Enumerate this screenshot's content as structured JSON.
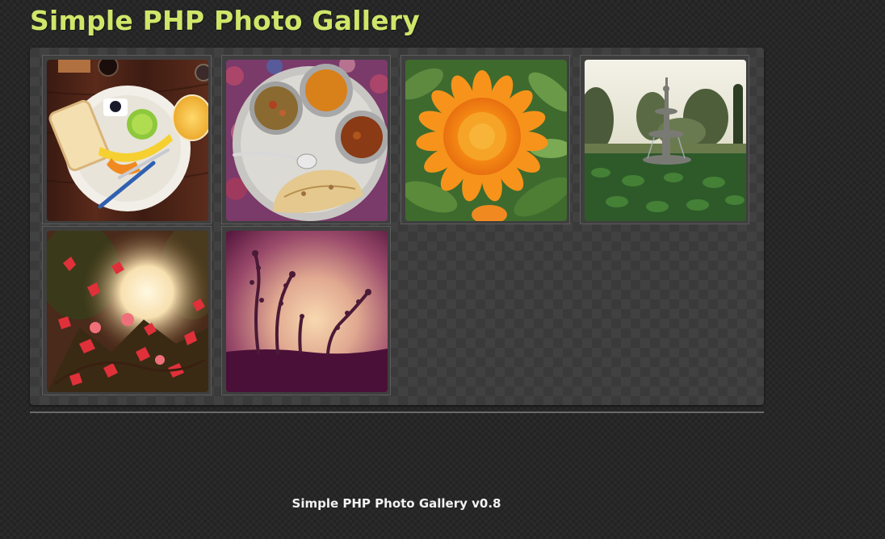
{
  "header": {
    "title": "Simple PHP Photo Gallery",
    "title_color": "#cfe66a"
  },
  "gallery": {
    "photos": [
      {
        "subject": "breakfast-plate"
      },
      {
        "subject": "thali-meal"
      },
      {
        "subject": "orange-flower"
      },
      {
        "subject": "garden-fountain"
      },
      {
        "subject": "red-bougainvillea"
      },
      {
        "subject": "sunset-silhouette"
      }
    ]
  },
  "footer": {
    "text": "Simple PHP Photo Gallery v0.8"
  }
}
